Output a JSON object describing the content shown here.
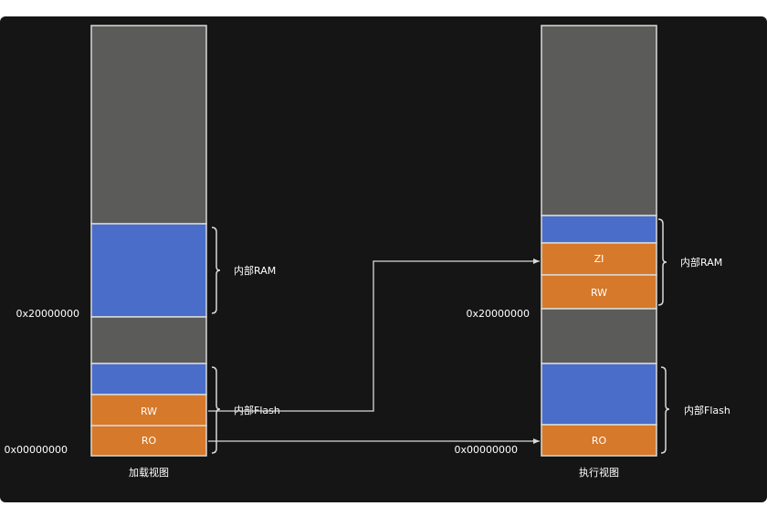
{
  "colors": {
    "canvas": "#151515",
    "gray_region": "#5b5c59",
    "blue_region": "#4a6dc9",
    "orange_region": "#d6792a",
    "border": "#d9d9d9",
    "text": "#ffffff"
  },
  "load_view": {
    "caption": "加载视图",
    "segments": {
      "rw": "RW",
      "ro": "RO"
    },
    "addresses": {
      "ram_base": "0x20000000",
      "flash_base": "0x00000000"
    },
    "braces": {
      "ram": "内部RAM",
      "flash": "内部Flash"
    }
  },
  "exec_view": {
    "caption": "执行视图",
    "segments": {
      "zi": "ZI",
      "rw": "RW",
      "ro": "RO"
    },
    "addresses": {
      "ram_base": "0x20000000",
      "flash_base": "0x00000000"
    },
    "braces": {
      "ram": "内部RAM",
      "flash": "内部Flash"
    }
  }
}
